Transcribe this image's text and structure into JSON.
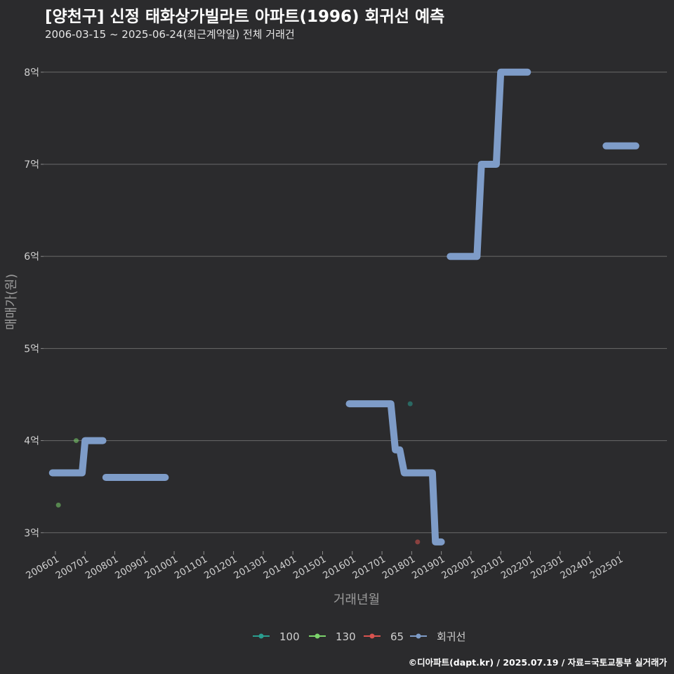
{
  "header": {
    "title": "[양천구] 신정 태화상가빌라트 아파트(1996) 회귀선 예측",
    "subtitle": "2006-03-15 ~ 2025-06-24(최근계약일) 전체 거래건"
  },
  "footer": {
    "credit": "©디아파트(dapt.kr) / 2025.07.19 / 자료=국토교통부 실거래가"
  },
  "chart_data": {
    "type": "line",
    "xlabel": "거래년월",
    "ylabel": "매매가(원)",
    "ylim": [
      2.8,
      8.25
    ],
    "xlim": [
      2005.6,
      2026.6
    ],
    "y_ticks": [
      3,
      4,
      5,
      6,
      7,
      8
    ],
    "y_tick_labels": [
      "3억",
      "4억",
      "5억",
      "6억",
      "7억",
      "8억"
    ],
    "x_ticks": [
      2006,
      2007,
      2008,
      2009,
      2010,
      2011,
      2012,
      2013,
      2014,
      2015,
      2016,
      2017,
      2018,
      2019,
      2020,
      2021,
      2022,
      2023,
      2024,
      2025
    ],
    "x_tick_labels": [
      "200601",
      "200701",
      "200801",
      "200901",
      "201001",
      "201101",
      "201201",
      "201301",
      "201401",
      "201501",
      "201601",
      "201701",
      "201801",
      "201901",
      "202001",
      "202101",
      "202201",
      "202301",
      "202401",
      "202501"
    ],
    "grid": "horizontal",
    "legend_position": "bottom",
    "colors": {
      "100": "#2a9d8f",
      "130": "#7bd36b",
      "65": "#d9534f",
      "회귀선": "#7e9cc8"
    },
    "series": [
      {
        "name": "100",
        "kind": "point",
        "x": [
          2017.95
        ],
        "y": [
          4.4
        ]
      },
      {
        "name": "130",
        "kind": "point",
        "x": [
          2006.1,
          2006.7
        ],
        "y": [
          3.3,
          4.0
        ]
      },
      {
        "name": "65",
        "kind": "point",
        "x": [
          2018.2
        ],
        "y": [
          2.9
        ]
      },
      {
        "name": "회귀선",
        "kind": "line",
        "segments": [
          {
            "x": [
              2005.9,
              2006.9,
              2007.0,
              2007.6
            ],
            "y": [
              3.65,
              3.65,
              4.0,
              4.0
            ]
          },
          {
            "x": [
              2007.7,
              2009.7
            ],
            "y": [
              3.6,
              3.6
            ]
          },
          {
            "x": [
              2015.9,
              2017.3,
              2017.45,
              2017.6,
              2017.75,
              2018.7,
              2018.8,
              2019.0
            ],
            "y": [
              4.4,
              4.4,
              3.9,
              3.9,
              3.65,
              3.65,
              2.9,
              2.9
            ]
          },
          {
            "x": [
              2019.3,
              2020.2,
              2020.35,
              2020.85,
              2021.0,
              2021.9
            ],
            "y": [
              6.0,
              6.0,
              7.0,
              7.0,
              8.0,
              8.0
            ]
          },
          {
            "x": [
              2024.55,
              2025.55
            ],
            "y": [
              7.2,
              7.2
            ]
          }
        ]
      }
    ],
    "legend": [
      "100",
      "130",
      "65",
      "회귀선"
    ]
  }
}
